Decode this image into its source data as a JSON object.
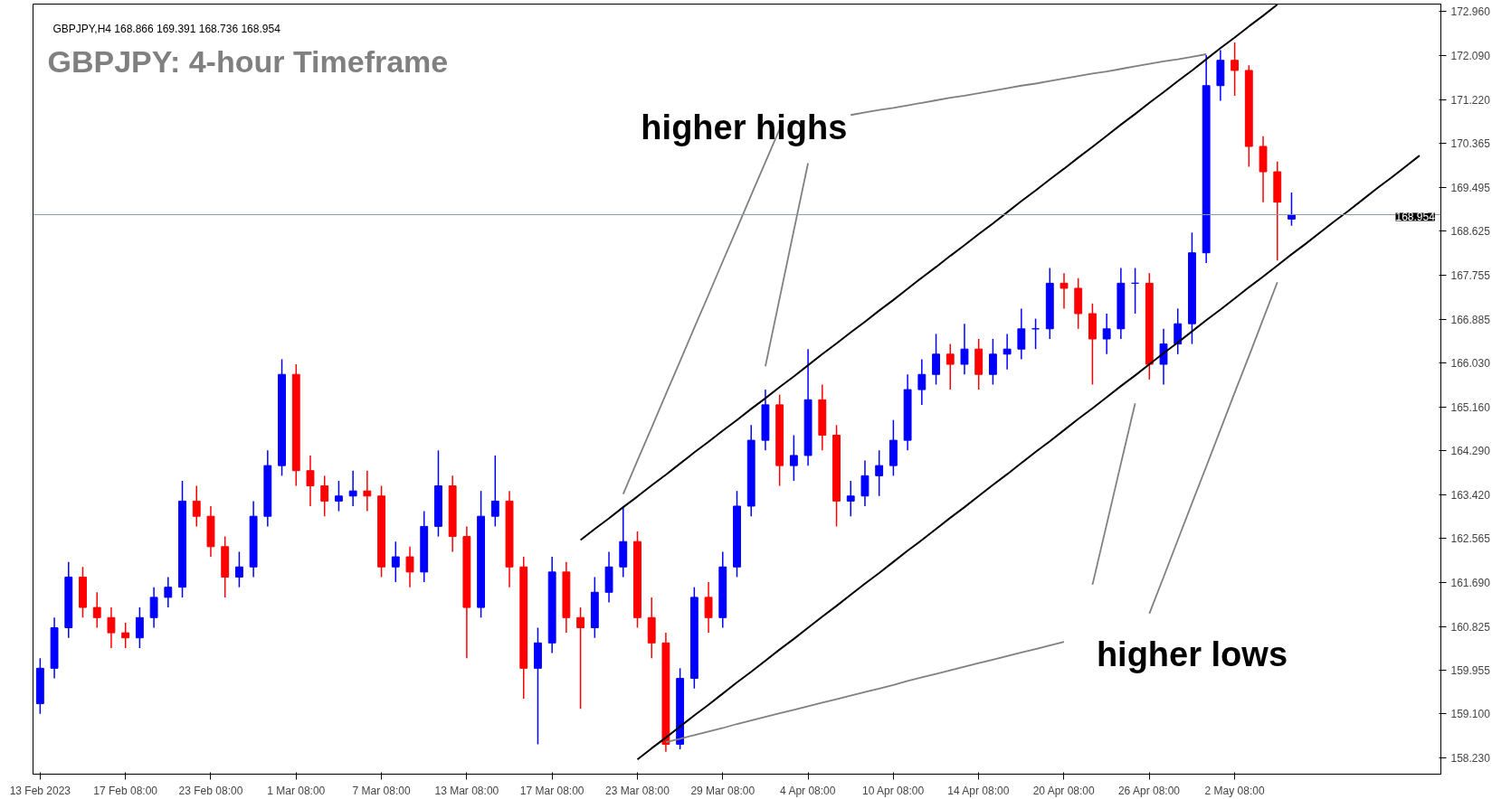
{
  "chart_data": {
    "type": "candlestick",
    "title": "GBPJPY: 4-hour Timeframe",
    "subtitle": "GBPJPY,H4  168.866 169.391 168.736 168.954",
    "annotations": [
      "higher highs",
      "higher lows"
    ],
    "categories": [
      "13 Feb 2023",
      null,
      null,
      null,
      null,
      null,
      "17 Feb 08:00",
      null,
      null,
      null,
      null,
      null,
      "23 Feb 08:00",
      null,
      null,
      null,
      null,
      null,
      "1 Mar 08:00",
      null,
      null,
      null,
      null,
      null,
      "7 Mar 08:00",
      null,
      null,
      null,
      null,
      null,
      "13 Mar 08:00",
      null,
      null,
      null,
      null,
      null,
      "17 Mar 08:00",
      null,
      null,
      null,
      null,
      null,
      "23 Mar 08:00",
      null,
      null,
      null,
      null,
      null,
      "29 Mar 08:00",
      null,
      null,
      null,
      null,
      null,
      "4 Apr 08:00",
      null,
      null,
      null,
      null,
      null,
      "10 Apr 08:00",
      null,
      null,
      null,
      null,
      null,
      "14 Apr 08:00",
      null,
      null,
      null,
      null,
      null,
      "20 Apr 08:00",
      null,
      null,
      null,
      null,
      null,
      "26 Apr 08:00",
      null,
      null,
      null,
      null,
      null,
      "2 May 08:00",
      null,
      null,
      null,
      null,
      null,
      null,
      null,
      null,
      null,
      null,
      null,
      null,
      null,
      null
    ],
    "ohlc": [
      [
        159.3,
        160.2,
        159.1,
        160.0
      ],
      [
        160.0,
        161.0,
        159.8,
        160.8
      ],
      [
        160.8,
        162.1,
        160.6,
        161.8
      ],
      [
        161.8,
        162.0,
        161.0,
        161.2
      ],
      [
        161.2,
        161.5,
        160.8,
        161.0
      ],
      [
        161.0,
        161.2,
        160.4,
        160.7
      ],
      [
        160.7,
        160.9,
        160.4,
        160.6
      ],
      [
        160.6,
        161.2,
        160.4,
        161.0
      ],
      [
        161.0,
        161.6,
        160.8,
        161.4
      ],
      [
        161.4,
        161.8,
        161.2,
        161.6
      ],
      [
        161.6,
        163.7,
        161.4,
        163.3
      ],
      [
        163.3,
        163.6,
        162.8,
        163.0
      ],
      [
        163.0,
        163.2,
        162.2,
        162.4
      ],
      [
        162.4,
        162.6,
        161.4,
        161.8
      ],
      [
        161.8,
        162.3,
        161.6,
        162.0
      ],
      [
        162.0,
        163.3,
        161.8,
        163.0
      ],
      [
        163.0,
        164.3,
        162.8,
        164.0
      ],
      [
        164.0,
        166.1,
        163.8,
        165.8
      ],
      [
        165.8,
        166.0,
        163.6,
        163.9
      ],
      [
        163.9,
        164.2,
        163.2,
        163.6
      ],
      [
        163.6,
        163.8,
        163.0,
        163.3
      ],
      [
        163.3,
        163.7,
        163.1,
        163.4
      ],
      [
        163.4,
        163.9,
        163.2,
        163.5
      ],
      [
        163.5,
        163.9,
        163.1,
        163.4
      ],
      [
        163.4,
        163.6,
        161.8,
        162.0
      ],
      [
        162.0,
        162.5,
        161.7,
        162.2
      ],
      [
        162.2,
        162.4,
        161.6,
        161.9
      ],
      [
        161.9,
        163.1,
        161.7,
        162.8
      ],
      [
        162.8,
        164.3,
        162.6,
        163.6
      ],
      [
        163.6,
        163.8,
        162.3,
        162.6
      ],
      [
        162.6,
        162.8,
        160.2,
        161.2
      ],
      [
        161.2,
        163.5,
        161.0,
        163.0
      ],
      [
        163.0,
        164.2,
        162.8,
        163.3
      ],
      [
        163.3,
        163.5,
        161.6,
        162.0
      ],
      [
        162.0,
        162.2,
        159.4,
        160.0
      ],
      [
        160.0,
        160.8,
        158.5,
        160.5
      ],
      [
        160.5,
        162.2,
        160.3,
        161.9
      ],
      [
        161.9,
        162.1,
        160.7,
        161.0
      ],
      [
        161.0,
        161.2,
        159.2,
        160.8
      ],
      [
        160.8,
        161.8,
        160.6,
        161.5
      ],
      [
        161.5,
        162.3,
        161.3,
        162.0
      ],
      [
        162.0,
        163.2,
        161.8,
        162.5
      ],
      [
        162.5,
        162.7,
        160.8,
        161.0
      ],
      [
        161.0,
        161.4,
        160.2,
        160.5
      ],
      [
        160.5,
        160.7,
        158.35,
        158.5
      ],
      [
        158.5,
        160.0,
        158.4,
        159.8
      ],
      [
        159.8,
        161.6,
        159.6,
        161.4
      ],
      [
        161.4,
        161.7,
        160.7,
        161.0
      ],
      [
        161.0,
        162.3,
        160.8,
        162.0
      ],
      [
        162.0,
        163.5,
        161.8,
        163.2
      ],
      [
        163.2,
        164.8,
        163.0,
        164.5
      ],
      [
        164.5,
        165.5,
        164.3,
        165.2
      ],
      [
        165.2,
        165.4,
        163.6,
        164.0
      ],
      [
        164.0,
        164.6,
        163.7,
        164.2
      ],
      [
        164.2,
        166.3,
        164.0,
        165.3
      ],
      [
        165.3,
        165.6,
        164.3,
        164.6
      ],
      [
        164.6,
        164.8,
        162.8,
        163.3
      ],
      [
        163.3,
        163.7,
        163.0,
        163.4
      ],
      [
        163.4,
        164.1,
        163.2,
        163.8
      ],
      [
        163.8,
        164.3,
        163.4,
        164.0
      ],
      [
        164.0,
        164.9,
        163.8,
        164.5
      ],
      [
        164.5,
        165.8,
        164.3,
        165.5
      ],
      [
        165.5,
        166.1,
        165.2,
        165.8
      ],
      [
        165.8,
        166.6,
        165.6,
        166.2
      ],
      [
        166.2,
        166.4,
        165.5,
        166.0
      ],
      [
        166.0,
        166.8,
        165.8,
        166.3
      ],
      [
        166.3,
        166.5,
        165.5,
        165.8
      ],
      [
        165.8,
        166.5,
        165.6,
        166.2
      ],
      [
        166.2,
        166.6,
        165.9,
        166.3
      ],
      [
        166.3,
        167.1,
        166.1,
        166.7
      ],
      [
        166.7,
        166.9,
        166.3,
        166.7
      ],
      [
        166.7,
        167.9,
        166.5,
        167.6
      ],
      [
        167.6,
        167.8,
        167.1,
        167.5
      ],
      [
        167.5,
        167.7,
        166.7,
        167.0
      ],
      [
        167.0,
        167.2,
        165.6,
        166.5
      ],
      [
        166.5,
        167.0,
        166.2,
        166.7
      ],
      [
        166.7,
        167.9,
        166.5,
        167.6
      ],
      [
        167.6,
        167.9,
        167.0,
        167.6
      ],
      [
        167.6,
        167.8,
        165.7,
        166.0
      ],
      [
        166.0,
        166.7,
        165.6,
        166.4
      ],
      [
        166.4,
        167.1,
        166.2,
        166.8
      ],
      [
        166.8,
        168.6,
        166.4,
        168.2
      ],
      [
        168.2,
        172.1,
        168.0,
        171.5
      ],
      [
        171.5,
        172.2,
        171.2,
        172.0
      ],
      [
        172.0,
        172.35,
        171.3,
        171.8
      ],
      [
        171.8,
        171.9,
        169.9,
        170.3
      ],
      [
        170.3,
        170.5,
        169.2,
        169.8
      ],
      [
        169.8,
        170.0,
        168.05,
        169.2
      ],
      [
        168.866,
        169.391,
        168.736,
        168.954
      ],
      null,
      null,
      null,
      null,
      null,
      null,
      null,
      null,
      null,
      null
    ],
    "series": [
      {
        "type": "line",
        "color": "#000000",
        "values": [
          null,
          null,
          null,
          null,
          null,
          null,
          null,
          null,
          null,
          null,
          null,
          null,
          null,
          null,
          null,
          null,
          null,
          null,
          null,
          null,
          null,
          null,
          null,
          null,
          null,
          null,
          null,
          null,
          null,
          null,
          null,
          null,
          null,
          null,
          null,
          null,
          null,
          null,
          162.53,
          162.75,
          162.96,
          163.18,
          163.39,
          163.61,
          163.82,
          164.04,
          164.26,
          164.47,
          164.69,
          164.9,
          165.12,
          165.33,
          165.55,
          165.76,
          165.98,
          166.2,
          166.41,
          166.63,
          166.84,
          167.06,
          167.27,
          167.49,
          167.71,
          167.92,
          168.14,
          168.35,
          168.57,
          168.78,
          169.0,
          169.22,
          169.43,
          169.65,
          169.86,
          170.08,
          170.29,
          170.51,
          170.73,
          170.94,
          171.16,
          171.37,
          171.59,
          171.8,
          172.02,
          172.24,
          172.45,
          172.67,
          172.88,
          173.1,
          null,
          null,
          null,
          null,
          null,
          null,
          null,
          null,
          null,
          null,
          null
        ]
      },
      {
        "type": "line",
        "color": "#000000",
        "values": [
          null,
          null,
          null,
          null,
          null,
          null,
          null,
          null,
          null,
          null,
          null,
          null,
          null,
          null,
          null,
          null,
          null,
          null,
          null,
          null,
          null,
          null,
          null,
          null,
          null,
          null,
          null,
          null,
          null,
          null,
          null,
          null,
          null,
          null,
          null,
          null,
          null,
          null,
          null,
          null,
          null,
          null,
          158.2,
          158.42,
          158.63,
          158.85,
          159.07,
          159.28,
          159.5,
          159.72,
          159.93,
          160.15,
          160.37,
          160.58,
          160.8,
          161.02,
          161.23,
          161.45,
          161.67,
          161.88,
          162.1,
          162.32,
          162.53,
          162.75,
          162.97,
          163.18,
          163.4,
          163.62,
          163.83,
          164.05,
          164.27,
          164.48,
          164.7,
          164.92,
          165.13,
          165.35,
          165.57,
          165.78,
          166.0,
          166.22,
          166.43,
          166.65,
          166.87,
          167.08,
          167.3,
          167.52,
          167.73,
          167.95,
          168.17,
          168.38,
          168.6,
          168.82,
          169.03,
          169.25,
          169.47,
          169.68,
          169.9,
          170.12,
          null
        ]
      },
      {
        "type": "line",
        "color": "#808080",
        "values": [
          null,
          null,
          null,
          null,
          null,
          null,
          null,
          null,
          null,
          null,
          null,
          null,
          null,
          null,
          null,
          null,
          null,
          null,
          null,
          null,
          null,
          null,
          null,
          null,
          null,
          null,
          null,
          null,
          null,
          null,
          null,
          null,
          null,
          null,
          null,
          null,
          null,
          null,
          null,
          null,
          null,
          163.44,
          164.1,
          164.75,
          165.41,
          166.06,
          166.72,
          167.37,
          168.03,
          168.68,
          169.34,
          169.99,
          170.64,
          null,
          null,
          null,
          null,
          null,
          null,
          null,
          null,
          null,
          null,
          null,
          null,
          null,
          null,
          null,
          null,
          null,
          null,
          null,
          null,
          null,
          null,
          null,
          null,
          null,
          null,
          null,
          null,
          null,
          null,
          null,
          null,
          null,
          null,
          null,
          null,
          null,
          null,
          null,
          null,
          null,
          null,
          null,
          null,
          null,
          null
        ]
      },
      {
        "type": "line",
        "color": "#808080",
        "values": [
          null,
          null,
          null,
          null,
          null,
          null,
          null,
          null,
          null,
          null,
          null,
          null,
          null,
          null,
          null,
          null,
          null,
          null,
          null,
          null,
          null,
          null,
          null,
          null,
          null,
          null,
          null,
          null,
          null,
          null,
          null,
          null,
          null,
          null,
          null,
          null,
          null,
          null,
          null,
          null,
          null,
          null,
          null,
          null,
          null,
          null,
          null,
          null,
          null,
          null,
          null,
          165.96,
          167.3,
          168.64,
          169.97,
          null,
          null,
          null,
          null,
          null,
          null,
          null,
          null,
          null,
          null,
          null,
          null,
          null,
          null,
          null,
          null,
          null,
          null,
          null,
          null,
          null,
          null,
          null,
          null,
          null,
          null,
          null,
          null,
          null,
          null,
          null,
          null,
          null,
          null,
          null,
          null,
          null,
          null,
          null,
          null,
          null,
          null,
          null,
          null
        ]
      },
      {
        "type": "line",
        "color": "#808080",
        "values": [
          null,
          null,
          null,
          null,
          null,
          null,
          null,
          null,
          null,
          null,
          null,
          null,
          null,
          null,
          null,
          null,
          null,
          null,
          null,
          null,
          null,
          null,
          null,
          null,
          null,
          null,
          null,
          null,
          null,
          null,
          null,
          null,
          null,
          null,
          null,
          null,
          null,
          null,
          null,
          null,
          null,
          null,
          null,
          null,
          null,
          null,
          null,
          null,
          null,
          null,
          null,
          null,
          null,
          null,
          null,
          null,
          null,
          170.92,
          170.97,
          171.02,
          171.06,
          171.11,
          171.16,
          171.21,
          171.26,
          171.3,
          171.35,
          171.4,
          171.45,
          171.5,
          171.54,
          171.59,
          171.64,
          171.69,
          171.74,
          171.78,
          171.83,
          171.88,
          171.93,
          171.98,
          172.02,
          172.07,
          172.12,
          null,
          null,
          null,
          null,
          null,
          null,
          null,
          null,
          null,
          null,
          null,
          null,
          null,
          null,
          null,
          null
        ]
      },
      {
        "type": "line",
        "color": "#808080",
        "values": [
          null,
          null,
          null,
          null,
          null,
          null,
          null,
          null,
          null,
          null,
          null,
          null,
          null,
          null,
          null,
          null,
          null,
          null,
          null,
          null,
          null,
          null,
          null,
          null,
          null,
          null,
          null,
          null,
          null,
          null,
          null,
          null,
          null,
          null,
          null,
          null,
          null,
          null,
          null,
          null,
          null,
          null,
          null,
          null,
          158.54,
          158.61,
          158.68,
          158.75,
          158.82,
          158.9,
          158.97,
          159.04,
          159.11,
          159.18,
          159.25,
          159.32,
          159.39,
          159.46,
          159.53,
          159.6,
          159.67,
          159.75,
          159.82,
          159.89,
          159.96,
          160.03,
          160.1,
          160.17,
          160.24,
          160.31,
          160.38,
          160.45,
          160.52,
          null,
          null,
          null,
          null,
          null,
          null,
          null,
          null,
          null,
          null,
          null,
          null,
          null,
          null,
          null,
          null,
          null,
          null,
          null,
          null,
          null,
          null,
          null,
          null,
          null,
          null
        ]
      },
      {
        "type": "line",
        "color": "#808080",
        "values": [
          null,
          null,
          null,
          null,
          null,
          null,
          null,
          null,
          null,
          null,
          null,
          null,
          null,
          null,
          null,
          null,
          null,
          null,
          null,
          null,
          null,
          null,
          null,
          null,
          null,
          null,
          null,
          null,
          null,
          null,
          null,
          null,
          null,
          null,
          null,
          null,
          null,
          null,
          null,
          null,
          null,
          null,
          null,
          null,
          null,
          null,
          null,
          null,
          null,
          null,
          null,
          null,
          null,
          null,
          null,
          null,
          null,
          null,
          null,
          null,
          null,
          null,
          null,
          null,
          null,
          null,
          null,
          null,
          null,
          null,
          null,
          null,
          null,
          null,
          161.65,
          162.84,
          164.04,
          165.23,
          null,
          null,
          null,
          null,
          null,
          null,
          null,
          null,
          null,
          null,
          null,
          null,
          null,
          null,
          null,
          null,
          null,
          null,
          null,
          null,
          null
        ]
      },
      {
        "type": "line",
        "color": "#808080",
        "values": [
          null,
          null,
          null,
          null,
          null,
          null,
          null,
          null,
          null,
          null,
          null,
          null,
          null,
          null,
          null,
          null,
          null,
          null,
          null,
          null,
          null,
          null,
          null,
          null,
          null,
          null,
          null,
          null,
          null,
          null,
          null,
          null,
          null,
          null,
          null,
          null,
          null,
          null,
          null,
          null,
          null,
          null,
          null,
          null,
          null,
          null,
          null,
          null,
          null,
          null,
          null,
          null,
          null,
          null,
          null,
          null,
          null,
          null,
          null,
          null,
          null,
          null,
          null,
          null,
          null,
          null,
          null,
          null,
          null,
          null,
          null,
          null,
          null,
          null,
          null,
          null,
          null,
          null,
          161.08,
          161.8,
          162.53,
          163.26,
          163.98,
          164.71,
          165.44,
          166.16,
          166.89,
          167.62,
          null,
          null,
          null,
          null,
          null,
          null,
          null,
          null,
          null,
          null,
          null
        ]
      }
    ],
    "ref_lines": [
      {
        "axis": "y",
        "value": 168.954,
        "label": "168.954",
        "color": "#8c9bab"
      }
    ],
    "ylim": [
      157.91,
      173.11
    ],
    "yticks": [
      {
        "value": 158.23,
        "label": "158.230"
      },
      {
        "value": 159.1,
        "label": "159.100"
      },
      {
        "value": 159.955,
        "label": "159.955"
      },
      {
        "value": 160.825,
        "label": "160.825"
      },
      {
        "value": 161.69,
        "label": "161.690"
      },
      {
        "value": 162.565,
        "label": "162.565"
      },
      {
        "value": 163.42,
        "label": "163.420"
      },
      {
        "value": 164.29,
        "label": "164.290"
      },
      {
        "value": 165.16,
        "label": "165.160"
      },
      {
        "value": 166.03,
        "label": "166.030"
      },
      {
        "value": 166.885,
        "label": "166.885"
      },
      {
        "value": 167.755,
        "label": "167.755"
      },
      {
        "value": 168.625,
        "label": "168.625"
      },
      {
        "value": 169.495,
        "label": "169.495"
      },
      {
        "value": 170.365,
        "label": "170.365"
      },
      {
        "value": 171.22,
        "label": "171.220"
      },
      {
        "value": 172.09,
        "label": "172.090"
      },
      {
        "value": 172.96,
        "label": "172.960"
      }
    ],
    "grid": false
  }
}
